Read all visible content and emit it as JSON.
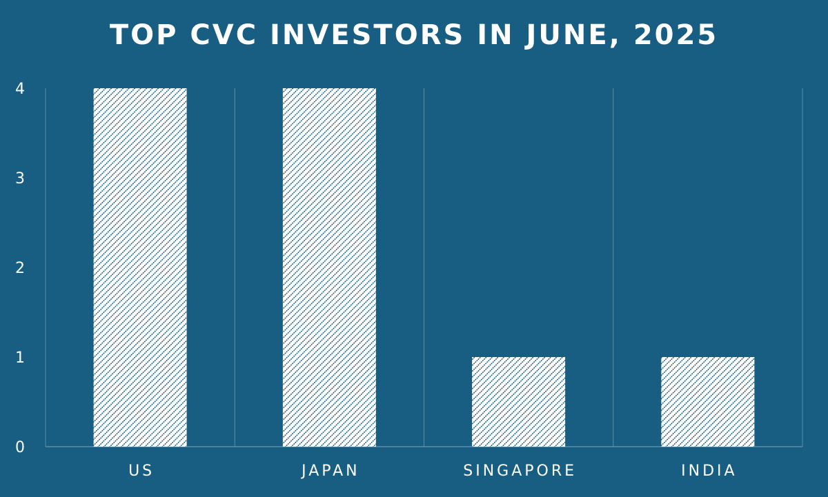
{
  "chart_data": {
    "type": "bar",
    "title": "TOP CVC INVESTORS IN JUNE, 2025",
    "categories": [
      "US",
      "JAPAN",
      "SINGAPORE",
      "INDIA"
    ],
    "values": [
      4,
      4,
      1,
      1
    ],
    "y_ticks": [
      "0",
      "1",
      "2",
      "3",
      "4"
    ],
    "ylim": [
      0,
      4
    ],
    "grid": "vertical separators",
    "legend": "none"
  },
  "colors": {
    "background": "#175e82",
    "bar_fill": "#ffffff",
    "bar_hatch": "#175e82",
    "grid": "#5a8fab",
    "text": "#ffffff"
  }
}
